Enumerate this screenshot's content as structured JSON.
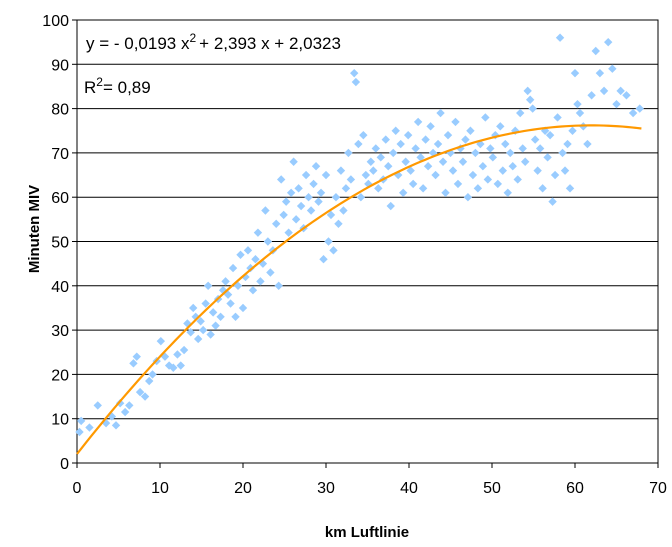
{
  "chart_data": {
    "type": "scatter",
    "title": "",
    "xlabel": "km Luftlinie",
    "ylabel": "Minuten MIV",
    "xlim": [
      0,
      70
    ],
    "ylim": [
      0,
      100
    ],
    "xticks": [
      "0",
      "10",
      "20",
      "30",
      "40",
      "50",
      "60",
      "70"
    ],
    "yticks": [
      "0",
      "10",
      "20",
      "30",
      "40",
      "50",
      "60",
      "70",
      "80",
      "90",
      "100"
    ],
    "grid": "horizontal",
    "legend": "none",
    "equation_prefix": "y = - 0,0193 x",
    "equation_sup": "2",
    "equation_suffix": "+ 2,393 x + 2,0323",
    "r2_prefix": "R",
    "r2_sup": "2",
    "r2_suffix": "= 0,89",
    "marker_color": "#99ccff",
    "trend_color": "#ff9900",
    "trend_coefficients": {
      "a": -0.0193,
      "b": 2.393,
      "c": 2.0323
    },
    "trend_range": [
      0,
      68
    ],
    "points": [
      [
        0.3,
        7
      ],
      [
        0.5,
        9.5
      ],
      [
        1.5,
        8
      ],
      [
        2.5,
        13
      ],
      [
        3.5,
        9
      ],
      [
        4.2,
        10.5
      ],
      [
        4.7,
        8.5
      ],
      [
        5.2,
        13.5
      ],
      [
        5.8,
        11.5
      ],
      [
        6.3,
        13
      ],
      [
        6.8,
        22.5
      ],
      [
        7.2,
        24
      ],
      [
        7.6,
        16
      ],
      [
        8.2,
        15
      ],
      [
        8.7,
        18.5
      ],
      [
        9.1,
        20
      ],
      [
        9.6,
        23
      ],
      [
        10.1,
        27.5
      ],
      [
        10.6,
        24
      ],
      [
        11.1,
        22
      ],
      [
        11.6,
        21.5
      ],
      [
        12.1,
        24.5
      ],
      [
        12.5,
        22
      ],
      [
        12.9,
        25.5
      ],
      [
        13.3,
        31.5
      ],
      [
        13.7,
        29.5
      ],
      [
        14.0,
        35
      ],
      [
        14.3,
        33
      ],
      [
        14.6,
        28
      ],
      [
        14.9,
        32
      ],
      [
        15.2,
        30
      ],
      [
        15.5,
        36
      ],
      [
        15.8,
        40
      ],
      [
        16.1,
        29
      ],
      [
        16.4,
        34
      ],
      [
        16.7,
        31
      ],
      [
        17.0,
        37
      ],
      [
        17.3,
        33
      ],
      [
        17.6,
        39
      ],
      [
        17.9,
        41
      ],
      [
        18.2,
        38
      ],
      [
        18.5,
        36
      ],
      [
        18.8,
        44
      ],
      [
        19.1,
        33
      ],
      [
        19.4,
        40
      ],
      [
        19.7,
        47
      ],
      [
        20.0,
        35
      ],
      [
        20.3,
        42
      ],
      [
        20.6,
        48
      ],
      [
        20.9,
        44
      ],
      [
        21.2,
        39
      ],
      [
        21.5,
        46
      ],
      [
        21.8,
        52
      ],
      [
        22.1,
        41
      ],
      [
        22.4,
        45
      ],
      [
        22.7,
        57
      ],
      [
        23.0,
        50
      ],
      [
        23.3,
        43
      ],
      [
        23.6,
        48
      ],
      [
        24.0,
        54
      ],
      [
        24.3,
        40
      ],
      [
        24.6,
        64
      ],
      [
        24.9,
        56
      ],
      [
        25.2,
        59
      ],
      [
        25.5,
        52
      ],
      [
        25.8,
        61
      ],
      [
        26.1,
        68
      ],
      [
        26.4,
        55
      ],
      [
        26.7,
        62
      ],
      [
        27.0,
        58
      ],
      [
        27.3,
        53
      ],
      [
        27.6,
        65
      ],
      [
        27.9,
        60
      ],
      [
        28.2,
        57
      ],
      [
        28.5,
        63
      ],
      [
        28.8,
        67
      ],
      [
        29.1,
        59
      ],
      [
        29.4,
        61
      ],
      [
        29.7,
        46
      ],
      [
        30.0,
        65
      ],
      [
        30.3,
        50
      ],
      [
        30.6,
        56
      ],
      [
        30.9,
        48
      ],
      [
        31.2,
        60
      ],
      [
        31.5,
        54
      ],
      [
        31.8,
        66
      ],
      [
        32.1,
        57
      ],
      [
        32.4,
        62
      ],
      [
        32.7,
        70
      ],
      [
        33.0,
        64
      ],
      [
        33.4,
        88
      ],
      [
        33.6,
        86
      ],
      [
        33.9,
        72
      ],
      [
        34.2,
        60
      ],
      [
        34.5,
        74
      ],
      [
        34.8,
        65
      ],
      [
        35.1,
        63
      ],
      [
        35.4,
        68
      ],
      [
        35.7,
        66
      ],
      [
        36.0,
        71
      ],
      [
        36.3,
        62
      ],
      [
        36.6,
        69
      ],
      [
        36.9,
        64
      ],
      [
        37.2,
        73
      ],
      [
        37.5,
        67
      ],
      [
        37.8,
        58
      ],
      [
        38.1,
        70
      ],
      [
        38.4,
        75
      ],
      [
        38.7,
        65
      ],
      [
        39.0,
        72
      ],
      [
        39.3,
        61
      ],
      [
        39.6,
        68
      ],
      [
        39.9,
        74
      ],
      [
        40.2,
        66
      ],
      [
        40.5,
        63
      ],
      [
        40.8,
        71
      ],
      [
        41.1,
        77
      ],
      [
        41.4,
        69
      ],
      [
        41.7,
        62
      ],
      [
        42.0,
        73
      ],
      [
        42.3,
        67
      ],
      [
        42.6,
        76
      ],
      [
        42.9,
        70
      ],
      [
        43.2,
        65
      ],
      [
        43.5,
        72
      ],
      [
        43.8,
        79
      ],
      [
        44.1,
        68
      ],
      [
        44.4,
        61
      ],
      [
        44.7,
        74
      ],
      [
        45.0,
        70
      ],
      [
        45.3,
        66
      ],
      [
        45.6,
        77
      ],
      [
        45.9,
        63
      ],
      [
        46.2,
        71
      ],
      [
        46.5,
        68
      ],
      [
        46.8,
        73
      ],
      [
        47.1,
        60
      ],
      [
        47.4,
        75
      ],
      [
        47.7,
        65
      ],
      [
        48.0,
        70
      ],
      [
        48.3,
        62
      ],
      [
        48.6,
        72
      ],
      [
        48.9,
        67
      ],
      [
        49.2,
        78
      ],
      [
        49.5,
        64
      ],
      [
        49.8,
        71
      ],
      [
        50.1,
        69
      ],
      [
        50.4,
        74
      ],
      [
        50.7,
        63
      ],
      [
        51.0,
        76
      ],
      [
        51.3,
        66
      ],
      [
        51.6,
        72
      ],
      [
        51.9,
        61
      ],
      [
        52.2,
        70
      ],
      [
        52.5,
        67
      ],
      [
        52.8,
        75
      ],
      [
        53.1,
        64
      ],
      [
        53.4,
        79
      ],
      [
        53.7,
        71
      ],
      [
        54.0,
        68
      ],
      [
        54.3,
        84
      ],
      [
        54.6,
        82
      ],
      [
        54.9,
        80
      ],
      [
        55.2,
        73
      ],
      [
        55.5,
        66
      ],
      [
        55.8,
        71
      ],
      [
        56.1,
        62
      ],
      [
        56.4,
        75
      ],
      [
        56.7,
        69
      ],
      [
        57.0,
        74
      ],
      [
        57.3,
        59
      ],
      [
        57.6,
        65
      ],
      [
        57.9,
        78
      ],
      [
        58.2,
        96
      ],
      [
        58.5,
        70
      ],
      [
        58.8,
        66
      ],
      [
        59.1,
        72
      ],
      [
        59.4,
        62
      ],
      [
        59.7,
        75
      ],
      [
        60.0,
        88
      ],
      [
        60.3,
        81
      ],
      [
        60.6,
        79
      ],
      [
        61.0,
        76
      ],
      [
        61.5,
        72
      ],
      [
        62.0,
        83
      ],
      [
        62.5,
        93
      ],
      [
        63.0,
        88
      ],
      [
        63.5,
        84
      ],
      [
        64.0,
        95
      ],
      [
        64.5,
        89
      ],
      [
        65.0,
        81
      ],
      [
        65.5,
        84
      ],
      [
        66.2,
        83
      ],
      [
        67.0,
        79
      ],
      [
        67.8,
        80
      ]
    ]
  }
}
